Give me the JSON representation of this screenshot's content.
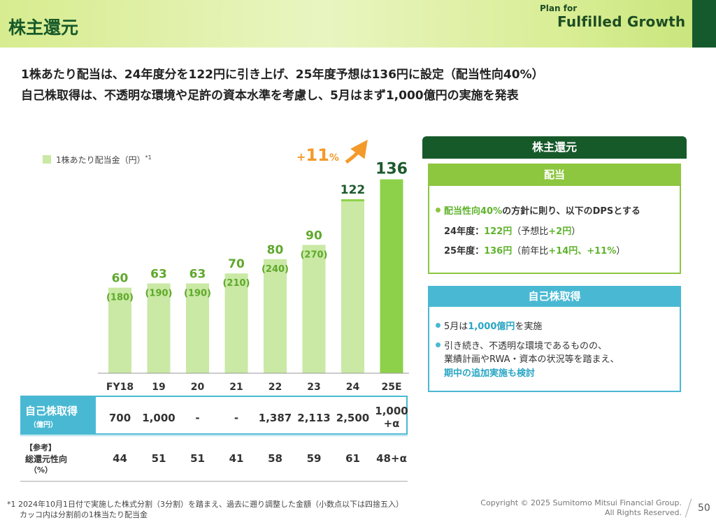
{
  "header": {
    "title": "株主還元",
    "logo_small": "Plan for",
    "logo_main": "Fulfilled Growth"
  },
  "headline": {
    "line1": "1株あたり配当は、24年度分を122円に引き上げ、25年度予想は136円に設定（配当性向40%）",
    "line2": "自己株取得は、不透明な環境や足許の資本水準を考慮し、5月はまず1,000億円の実施を発表"
  },
  "legend": {
    "label": "1株あたり配当金（円）",
    "note": "*1"
  },
  "growth": {
    "prefix": "+",
    "value": "11",
    "suffix": "%"
  },
  "chart_data": {
    "type": "bar",
    "categories": [
      "FY18",
      "19",
      "20",
      "21",
      "22",
      "23",
      "24",
      "25E"
    ],
    "values": [
      60,
      63,
      63,
      70,
      80,
      90,
      122,
      136
    ],
    "pre_split_values": [
      "(180)",
      "(190)",
      "(190)",
      "(210)",
      "(240)",
      "(270)",
      "",
      ""
    ],
    "series": [
      {
        "name": "1株あたり配当金（円）",
        "values": [
          60,
          63,
          63,
          70,
          80,
          90,
          122,
          136
        ]
      }
    ],
    "annotation": "+11%",
    "colors": {
      "light": "#c9e9a4",
      "forecast": "#8dd14a",
      "label": "#5fa82c",
      "dark_label": "#1d5a2c"
    }
  },
  "buyback_table": {
    "label": "自己株取得",
    "unit": "（億円）",
    "values": [
      "700",
      "1,000",
      "-",
      "-",
      "1,387",
      "2,113",
      "2,500",
      "1,000\n+α"
    ]
  },
  "payout_table": {
    "ref": "【参考】",
    "label": "総還元性向",
    "unit": "（%）",
    "values": [
      "44",
      "51",
      "51",
      "41",
      "58",
      "59",
      "61",
      "48+α"
    ]
  },
  "panel": {
    "title": "株主還元",
    "dividend": {
      "title": "配当",
      "line1_a": "配当性向40%",
      "line1_b": "の方針に則り、以下のDPSとする",
      "line2_a": "24年度：",
      "line2_b": "122円",
      "line2_c": "（予想比",
      "line2_d": "+2円",
      "line2_e": "）",
      "line3_a": "25年度：",
      "line3_b": "136円",
      "line3_c": "（前年比",
      "line3_d": "+14円、+11%",
      "line3_e": "）"
    },
    "buyback": {
      "title": "自己株取得",
      "line1_a": "5月は",
      "line1_b": "1,000億円",
      "line1_c": "を実施",
      "line2": "引き続き、不透明な環境であるものの、",
      "line3": "業績計画やRWA・資本の状況等を踏まえ、",
      "line4": "期中の追加実施も検討"
    }
  },
  "footnote": {
    "line1": "*1 2024年10月1日付で実施した株式分割（3分割）を踏まえ、過去に遡り調整した金額（小数点以下は四捨五入）",
    "line2": "カッコ内は分割前の1株当たり配当金"
  },
  "copyright": {
    "line1": "Copyright © 2025 Sumitomo Mitsui Financial Group.",
    "line2": "All Rights Reserved."
  },
  "page_number": "50"
}
